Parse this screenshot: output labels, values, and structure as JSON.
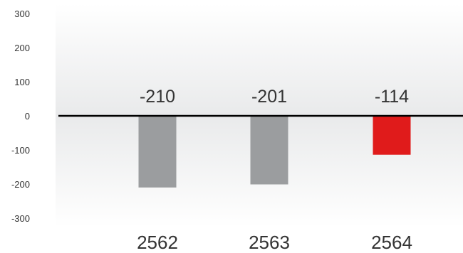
{
  "chart_data": {
    "type": "bar",
    "title": "",
    "xlabel": "",
    "ylabel": "",
    "categories": [
      "2562",
      "2563",
      "2564"
    ],
    "values": [
      -210,
      -201,
      -114
    ],
    "data_labels": [
      "-210",
      "-201",
      "-114"
    ],
    "ylim": [
      -300,
      300
    ],
    "yticks": [
      300,
      200,
      100,
      0,
      -100,
      -200,
      -300
    ],
    "ytick_labels": [
      "300",
      "200",
      "100",
      "0",
      "-100",
      "-200",
      "-300"
    ],
    "grid": false,
    "legend": "none",
    "colors": {
      "bars": [
        "#9b9d9f",
        "#9b9d9f",
        "#e01b1b"
      ],
      "zero_line": "#000000",
      "panel_top": "#ffffff",
      "panel_mid": "#e9eaeb"
    }
  }
}
